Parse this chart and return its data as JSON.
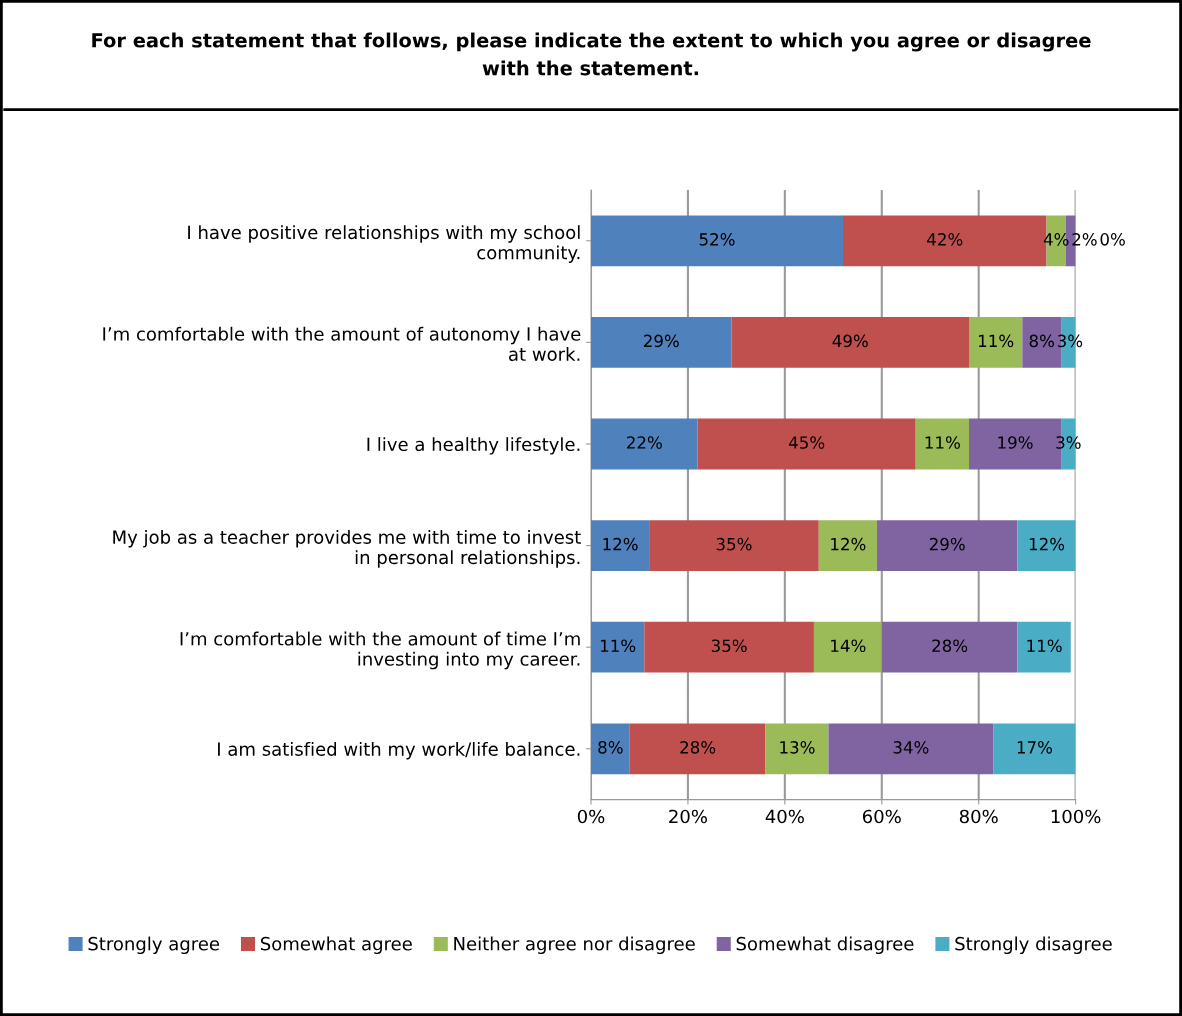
{
  "chart_data": {
    "type": "bar",
    "orientation": "horizontal",
    "stacked": true,
    "title": "For each statement that follows, please indicate the extent to which you agree or disagree\nwith the statement.",
    "categories": [
      "I have positive relationships with my school\ncommunity.",
      "I’m comfortable with the amount of autonomy I have\nat work.",
      "I live a healthy lifestyle.",
      "My job as a teacher provides me with time to invest\nin personal relationships.",
      "I’m comfortable with the amount of time I’m\ninvesting into my career.",
      "I am satisfied with my work/life balance."
    ],
    "series": [
      {
        "name": "Strongly agree",
        "color": "#4f81bd",
        "values": [
          52,
          29,
          22,
          12,
          11,
          8
        ],
        "value_labels": [
          "52%",
          "29%",
          "22%",
          "12%",
          "11%",
          "8%"
        ]
      },
      {
        "name": "Somewhat agree",
        "color": "#c0504d",
        "values": [
          42,
          49,
          45,
          35,
          35,
          28
        ],
        "value_labels": [
          "42%",
          "49%",
          "45%",
          "35%",
          "35%",
          "28%"
        ]
      },
      {
        "name": "Neither agree nor disagree",
        "color": "#9bbb59",
        "values": [
          4,
          11,
          11,
          12,
          14,
          13
        ],
        "value_labels": [
          "4%",
          "11%",
          "11%",
          "12%",
          "14%",
          "13%"
        ]
      },
      {
        "name": "Somewhat disagree",
        "color": "#8064a2",
        "values": [
          2,
          8,
          19,
          29,
          28,
          34
        ],
        "value_labels": [
          "2%",
          "8%",
          "19%",
          "29%",
          "28%",
          "34%"
        ]
      },
      {
        "name": "Strongly disagree",
        "color": "#4bacc6",
        "values": [
          0,
          3,
          3,
          12,
          11,
          17
        ],
        "value_labels": [
          "0%",
          "3%",
          "3%",
          "12%",
          "11%",
          "17%"
        ]
      }
    ],
    "xlim": [
      0,
      100
    ],
    "xticks": [
      {
        "value": 0,
        "label": "0%"
      },
      {
        "value": 20,
        "label": "20%"
      },
      {
        "value": 40,
        "label": "40%"
      },
      {
        "value": 60,
        "label": "60%"
      },
      {
        "value": 80,
        "label": "80%"
      },
      {
        "value": 100,
        "label": "100%"
      }
    ],
    "grid": "x",
    "legend": "bottom"
  }
}
